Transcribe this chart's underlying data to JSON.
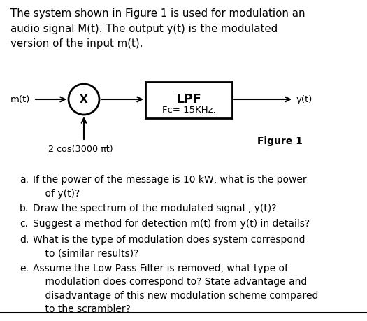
{
  "bg_color": "#ffffff",
  "intro_text": "The system shown in Figure 1 is used for modulation an\naudio signal M(t). The output y(t) is the modulated\nversion of the input m(t).",
  "intro_fontsize": 10.8,
  "diagram": {
    "mt_label": "m(t)",
    "yt_label": "y(t)",
    "lpf_label": "LPF",
    "fc_label": "Fc= 15KHz.",
    "carrier_label": "2 cos(3000 πt)",
    "figure_label": "Figure 1",
    "x_label": "X"
  },
  "questions": [
    {
      "label": "a.",
      "text": "If the power of the message is 10 kW, what is the power\n    of y(t)?"
    },
    {
      "label": "b.",
      "text": "Draw the spectrum of the modulated signal , y(t)?"
    },
    {
      "label": "c.",
      "text": "Suggest a method for detection m(t) from y(t) in details?"
    },
    {
      "label": "d.",
      "text": "What is the type of modulation does system correspond\n    to (similar results)?"
    },
    {
      "label": "e.",
      "text": "Assume the Low Pass Filter is removed, what type of\n    modulation does correspond to? State advantage and\n    disadvantage of this new modulation scheme compared\n    to the scrambler?"
    }
  ],
  "q_fontsize": 10.0,
  "text_color": "#000000",
  "line_color": "#000000"
}
